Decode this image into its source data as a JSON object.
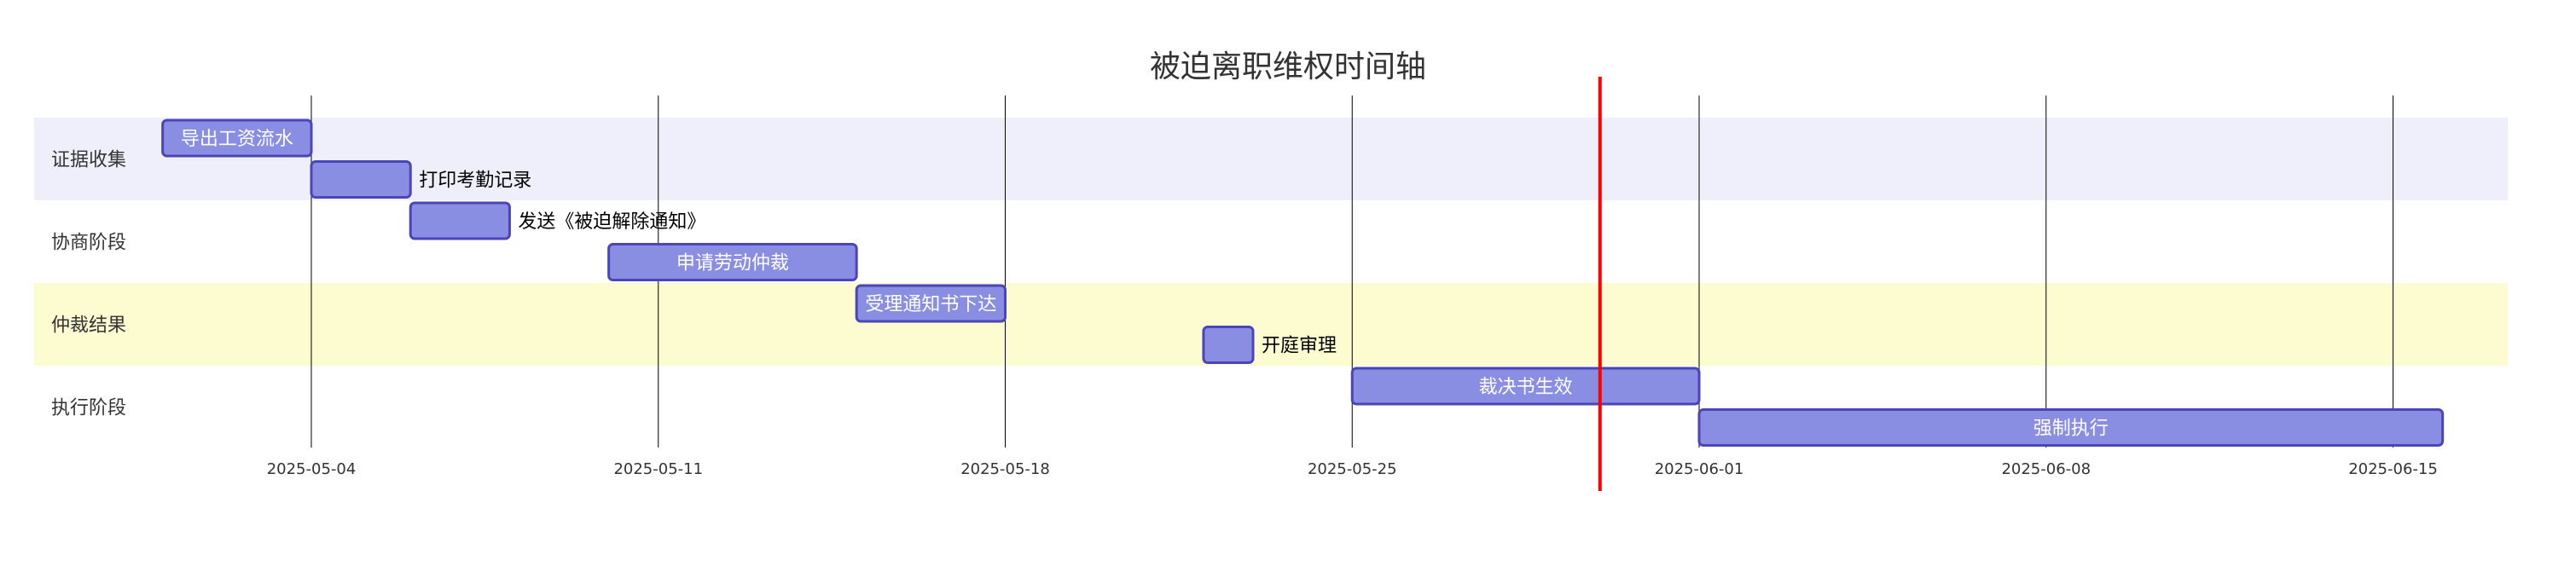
{
  "chart_data": {
    "type": "gantt",
    "title": "被迫离职维权时间轴",
    "sections": [
      {
        "name": "证据收集",
        "band_color": "#efeffc"
      },
      {
        "name": "协商阶段",
        "band_color": "#ffffff"
      },
      {
        "name": "仲裁结果",
        "band_color": "#fdfbd0"
      },
      {
        "name": "执行阶段",
        "band_color": "#ffffff"
      }
    ],
    "tasks": [
      {
        "name": "导出工资流水",
        "start": "2025-05-01",
        "end": "2025-05-04",
        "label_position": "inside"
      },
      {
        "name": "打印考勤记录",
        "start": "2025-05-04",
        "end": "2025-05-06",
        "label_position": "outside"
      },
      {
        "name": "发送《被迫解除通知》",
        "start": "2025-05-06",
        "end": "2025-05-08",
        "label_position": "outside"
      },
      {
        "name": "申请劳动仲裁",
        "start": "2025-05-10",
        "end": "2025-05-15",
        "label_position": "inside"
      },
      {
        "name": "受理通知书下达",
        "start": "2025-05-15",
        "end": "2025-05-18",
        "label_position": "inside"
      },
      {
        "name": "开庭审理",
        "start": "2025-05-22",
        "end": "2025-05-23",
        "label_position": "outside"
      },
      {
        "name": "裁决书生效",
        "start": "2025-05-25",
        "end": "2025-06-01",
        "label_position": "inside"
      },
      {
        "name": "强制执行",
        "start": "2025-06-01",
        "end": "2025-06-16",
        "label_position": "inside"
      }
    ],
    "x_ticks": [
      "2025-05-04",
      "2025-05-11",
      "2025-05-18",
      "2025-05-25",
      "2025-06-01",
      "2025-06-08",
      "2025-06-15"
    ],
    "today_marker": "2025-05-30",
    "colors": {
      "bar_fill": "#8a8ee3",
      "bar_stroke": "#4a45b8",
      "today_line": "#ff0000",
      "grid_line": "#000000"
    }
  }
}
